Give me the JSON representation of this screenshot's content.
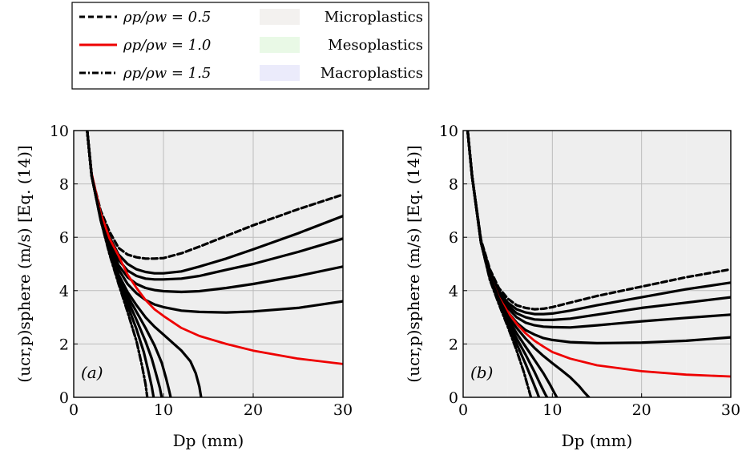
{
  "legend": {
    "lines": [
      {
        "label": "ρp/ρw = 0.5",
        "style": "dashed",
        "color": "#000000"
      },
      {
        "label": "ρp/ρw = 1.0",
        "style": "solid",
        "color": "#ee0000"
      },
      {
        "label": "ρp/ρw = 1.5",
        "style": "dash-dot",
        "color": "#000000"
      }
    ],
    "regions": [
      {
        "label": "Microplastics",
        "color": "#f3f1ef"
      },
      {
        "label": "Mesoplastics",
        "color": "#e9f9e6"
      },
      {
        "label": "Macroplastics",
        "color": "#ebebfb"
      }
    ]
  },
  "link_color": "#1f1f8f",
  "chart_data": [
    {
      "type": "line",
      "panel_label": "(a)",
      "xlabel": "Dp (mm)",
      "ylabel": "(ucr,p)sphere (m/s) [Eq. (14)]",
      "xlim": [
        0,
        30
      ],
      "ylim": [
        0,
        10
      ],
      "xticks": [
        "0",
        "10",
        "20",
        "30"
      ],
      "yticks": [
        "0",
        "2",
        "4",
        "6",
        "8",
        "10"
      ],
      "grid": true,
      "regions": [
        {
          "name": "Microplastics",
          "x": [
            0,
            5
          ]
        },
        {
          "name": "Mesoplastics",
          "x": [
            5,
            25
          ]
        },
        {
          "name": "Macroplastics",
          "x": [
            25,
            30
          ]
        }
      ],
      "series": [
        {
          "name": "ρp/ρw = 0.5",
          "style": "dashed",
          "color": "#000000",
          "x": [
            1.5,
            2,
            3,
            4,
            5,
            6,
            7,
            8,
            9,
            10,
            12,
            14,
            17,
            20,
            25,
            30
          ],
          "y": [
            10,
            8.3,
            7.0,
            6.2,
            5.6,
            5.35,
            5.25,
            5.2,
            5.2,
            5.22,
            5.4,
            5.65,
            6.05,
            6.45,
            7.05,
            7.6
          ]
        },
        {
          "name": "",
          "style": "solid",
          "color": "#000000",
          "x": [
            1.5,
            2,
            3,
            4,
            5,
            6,
            7,
            8,
            9,
            10,
            12,
            14,
            17,
            20,
            25,
            30
          ],
          "y": [
            10,
            8.3,
            6.9,
            6.0,
            5.35,
            5.0,
            4.8,
            4.7,
            4.65,
            4.65,
            4.72,
            4.9,
            5.2,
            5.55,
            6.15,
            6.8
          ]
        },
        {
          "name": "",
          "style": "solid",
          "color": "#000000",
          "x": [
            1.5,
            2,
            3,
            4,
            5,
            6,
            7,
            8,
            9,
            10,
            12,
            14,
            17,
            20,
            25,
            30
          ],
          "y": [
            10,
            8.3,
            6.85,
            5.85,
            5.15,
            4.75,
            4.55,
            4.45,
            4.42,
            4.42,
            4.45,
            4.55,
            4.78,
            5.0,
            5.45,
            5.95
          ]
        },
        {
          "name": "",
          "style": "solid",
          "color": "#000000",
          "x": [
            1.5,
            2,
            3,
            4,
            5,
            6,
            7,
            8,
            9,
            10,
            12,
            14,
            17,
            20,
            25,
            30
          ],
          "y": [
            10,
            8.3,
            6.8,
            5.7,
            4.95,
            4.5,
            4.25,
            4.1,
            4.02,
            3.98,
            3.95,
            3.98,
            4.1,
            4.25,
            4.55,
            4.9
          ]
        },
        {
          "name": "",
          "style": "solid",
          "color": "#000000",
          "x": [
            1.5,
            2,
            3,
            4,
            5,
            6,
            7,
            8,
            9,
            10,
            12,
            14,
            17,
            20,
            25,
            30
          ],
          "y": [
            10,
            8.3,
            6.75,
            5.6,
            4.8,
            4.25,
            3.9,
            3.65,
            3.48,
            3.38,
            3.25,
            3.2,
            3.18,
            3.22,
            3.35,
            3.6
          ]
        },
        {
          "name": "ρp/ρw = 1.0",
          "style": "solid",
          "color": "#ee0000",
          "x": [
            1.5,
            2,
            3,
            4,
            5,
            6,
            7,
            8,
            9,
            10,
            12,
            14,
            17,
            20,
            25,
            30
          ],
          "y": [
            10,
            8.4,
            6.9,
            5.95,
            5.3,
            4.6,
            4.1,
            3.65,
            3.3,
            3.05,
            2.6,
            2.3,
            2.0,
            1.75,
            1.45,
            1.25
          ]
        },
        {
          "name": "",
          "style": "solid",
          "color": "#000000",
          "x": [
            1.5,
            2,
            3,
            4,
            5,
            6,
            7,
            8,
            9,
            10,
            11,
            12,
            13,
            13.6,
            14,
            14.2
          ],
          "y": [
            10,
            8.3,
            6.7,
            5.55,
            4.6,
            3.95,
            3.45,
            3.0,
            2.65,
            2.35,
            2.05,
            1.75,
            1.35,
            0.9,
            0.4,
            0
          ]
        },
        {
          "name": "",
          "style": "solid",
          "color": "#000000",
          "x": [
            1.5,
            2,
            3,
            4,
            5,
            6,
            7,
            8,
            9,
            9.8,
            10.3,
            10.6,
            10.8
          ],
          "y": [
            10,
            8.3,
            6.7,
            5.5,
            4.5,
            3.8,
            3.2,
            2.6,
            1.95,
            1.3,
            0.7,
            0.3,
            0
          ]
        },
        {
          "name": "",
          "style": "solid",
          "color": "#000000",
          "x": [
            1.5,
            2,
            3,
            4,
            5,
            6,
            7,
            8,
            8.7,
            9.2,
            9.6,
            9.8
          ],
          "y": [
            10,
            8.3,
            6.7,
            5.45,
            4.45,
            3.65,
            2.9,
            2.1,
            1.45,
            0.85,
            0.35,
            0
          ]
        },
        {
          "name": "",
          "style": "solid",
          "color": "#000000",
          "x": [
            1.5,
            2,
            3,
            4,
            5,
            6,
            7,
            7.8,
            8.3,
            8.7,
            8.9
          ],
          "y": [
            10,
            8.3,
            6.65,
            5.4,
            4.35,
            3.45,
            2.55,
            1.7,
            1.0,
            0.4,
            0
          ]
        },
        {
          "name": "ρp/ρw = 1.5",
          "style": "dash-dot",
          "color": "#000000",
          "x": [
            1.5,
            2,
            3,
            4,
            5,
            6,
            7,
            7.6,
            8.0,
            8.2
          ],
          "y": [
            10,
            8.3,
            6.65,
            5.35,
            4.25,
            3.2,
            2.1,
            1.2,
            0.5,
            0
          ]
        }
      ]
    },
    {
      "type": "line",
      "panel_label": "(b)",
      "xlabel": "Dp (mm)",
      "ylabel": "(ucr,p)sphere (m/s) [Eq. (14)]",
      "xlim": [
        0,
        30
      ],
      "ylim": [
        0,
        10
      ],
      "xticks": [
        "0",
        "10",
        "20",
        "30"
      ],
      "yticks": [
        "0",
        "2",
        "4",
        "6",
        "8",
        "10"
      ],
      "grid": true,
      "regions": [
        {
          "name": "Microplastics",
          "x": [
            0,
            5
          ]
        },
        {
          "name": "Mesoplastics",
          "x": [
            5,
            25
          ]
        },
        {
          "name": "Macroplastics",
          "x": [
            25,
            30
          ]
        }
      ],
      "series": [
        {
          "name": "ρp/ρw = 0.5",
          "style": "dashed",
          "color": "#000000",
          "x": [
            0.5,
            1,
            2,
            3,
            4,
            5,
            6,
            7,
            8,
            9,
            10,
            12,
            15,
            20,
            25,
            30
          ],
          "y": [
            10,
            8.3,
            5.9,
            4.8,
            4.1,
            3.7,
            3.45,
            3.35,
            3.3,
            3.32,
            3.38,
            3.55,
            3.8,
            4.15,
            4.5,
            4.8
          ]
        },
        {
          "name": "",
          "style": "solid",
          "color": "#000000",
          "x": [
            0.5,
            1,
            2,
            3,
            4,
            5,
            6,
            7,
            8,
            9,
            10,
            12,
            15,
            20,
            25,
            30
          ],
          "y": [
            10,
            8.3,
            5.85,
            4.75,
            4.0,
            3.55,
            3.3,
            3.18,
            3.12,
            3.12,
            3.14,
            3.25,
            3.45,
            3.75,
            4.05,
            4.3
          ]
        },
        {
          "name": "",
          "style": "solid",
          "color": "#000000",
          "x": [
            0.5,
            1,
            2,
            3,
            4,
            5,
            6,
            7,
            8,
            9,
            10,
            12,
            15,
            20,
            25,
            30
          ],
          "y": [
            10,
            8.3,
            5.85,
            4.7,
            3.95,
            3.45,
            3.15,
            3.0,
            2.92,
            2.9,
            2.9,
            2.95,
            3.1,
            3.35,
            3.55,
            3.75
          ]
        },
        {
          "name": "",
          "style": "solid",
          "color": "#000000",
          "x": [
            0.5,
            1,
            2,
            3,
            4,
            5,
            6,
            7,
            8,
            9,
            10,
            12,
            15,
            20,
            25,
            30
          ],
          "y": [
            10,
            8.3,
            5.8,
            4.65,
            3.9,
            3.35,
            3.0,
            2.8,
            2.7,
            2.65,
            2.63,
            2.62,
            2.7,
            2.85,
            2.98,
            3.1
          ]
        },
        {
          "name": "",
          "style": "solid",
          "color": "#000000",
          "x": [
            0.5,
            1,
            2,
            3,
            4,
            5,
            6,
            7,
            8,
            9,
            10,
            12,
            15,
            20,
            25,
            30
          ],
          "y": [
            10,
            8.3,
            5.8,
            4.6,
            3.8,
            3.2,
            2.8,
            2.52,
            2.35,
            2.22,
            2.15,
            2.07,
            2.03,
            2.05,
            2.12,
            2.25
          ]
        },
        {
          "name": "ρp/ρw = 1.0",
          "style": "solid",
          "color": "#ee0000",
          "x": [
            0.5,
            1,
            2,
            3,
            4,
            5,
            6,
            7,
            8,
            9,
            10,
            12,
            15,
            20,
            25,
            30
          ],
          "y": [
            10,
            8.3,
            5.8,
            4.55,
            3.75,
            3.2,
            2.75,
            2.4,
            2.12,
            1.9,
            1.7,
            1.45,
            1.2,
            0.98,
            0.85,
            0.78
          ]
        },
        {
          "name": "",
          "style": "solid",
          "color": "#000000",
          "x": [
            0.5,
            1,
            2,
            3,
            4,
            5,
            6,
            7,
            8,
            9,
            10,
            11,
            12,
            13,
            13.6,
            14.1
          ],
          "y": [
            10,
            8.3,
            5.8,
            4.55,
            3.7,
            3.05,
            2.6,
            2.2,
            1.85,
            1.55,
            1.28,
            1.02,
            0.75,
            0.42,
            0.18,
            0
          ]
        },
        {
          "name": "",
          "style": "solid",
          "color": "#000000",
          "x": [
            0.5,
            1,
            2,
            3,
            4,
            5,
            6,
            7,
            8,
            9,
            9.7,
            10.2,
            10.5
          ],
          "y": [
            10,
            8.3,
            5.8,
            4.5,
            3.65,
            2.95,
            2.4,
            1.9,
            1.4,
            0.9,
            0.5,
            0.18,
            0
          ]
        },
        {
          "name": "",
          "style": "solid",
          "color": "#000000",
          "x": [
            0.5,
            1,
            2,
            3,
            4,
            5,
            6,
            7,
            8,
            8.7,
            9.2,
            9.4
          ],
          "y": [
            10,
            8.3,
            5.8,
            4.45,
            3.6,
            2.85,
            2.2,
            1.6,
            0.95,
            0.45,
            0.12,
            0
          ]
        },
        {
          "name": "",
          "style": "solid",
          "color": "#000000",
          "x": [
            0.5,
            1,
            2,
            3,
            4,
            5,
            6,
            7,
            7.8,
            8.3,
            8.5
          ],
          "y": [
            10,
            8.3,
            5.8,
            4.45,
            3.55,
            2.75,
            2.0,
            1.25,
            0.6,
            0.18,
            0
          ]
        },
        {
          "name": "ρp/ρw = 1.5",
          "style": "dash-dot",
          "color": "#000000",
          "x": [
            0.5,
            1,
            2,
            3,
            4,
            5,
            6,
            6.8,
            7.3,
            7.6
          ],
          "y": [
            10,
            8.3,
            5.8,
            4.4,
            3.5,
            2.65,
            1.75,
            0.95,
            0.35,
            0
          ]
        }
      ]
    }
  ]
}
